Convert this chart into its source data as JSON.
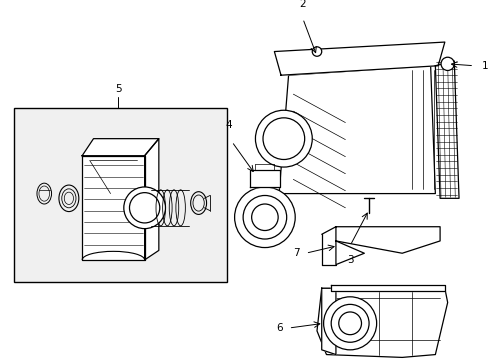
{
  "background_color": "#ffffff",
  "line_color": "#000000",
  "figsize": [
    4.89,
    3.6
  ],
  "dpi": 100,
  "label_fontsize": 7.5
}
